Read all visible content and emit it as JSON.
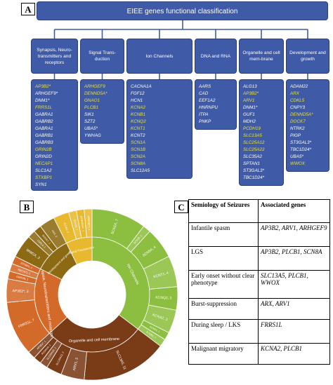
{
  "panel_a": {
    "label": "A",
    "title": "EIEE genes functional classification",
    "categories": [
      {
        "label": "Synapsis, Neuro-transmitters and receptors",
        "genes": [
          {
            "name": "AP3B2*",
            "hl": true
          },
          {
            "name": "ARHGEF9*",
            "hl": false
          },
          {
            "name": "DNM1*",
            "hl": false
          },
          {
            "name": "FRRS1L",
            "hl": true
          },
          {
            "name": "GABRA1",
            "hl": false
          },
          {
            "name": "GABRB2",
            "hl": false
          },
          {
            "name": "GABRA1",
            "hl": false
          },
          {
            "name": "GABRB1",
            "hl": false
          },
          {
            "name": "GABRB3",
            "hl": false
          },
          {
            "name": "GRIN2B",
            "hl": true
          },
          {
            "name": "GRIN2D",
            "hl": false
          },
          {
            "name": "NECAP1",
            "hl": true
          },
          {
            "name": "SLC1A2",
            "hl": false
          },
          {
            "name": "STXBP1",
            "hl": true
          },
          {
            "name": "SYN1",
            "hl": false
          }
        ]
      },
      {
        "label": "Signal Trans-duction",
        "genes": [
          {
            "name": "ARHGEF9",
            "hl": true
          },
          {
            "name": "DENND5A*",
            "hl": true
          },
          {
            "name": "GNAO1",
            "hl": true
          },
          {
            "name": "PLCB1",
            "hl": true
          },
          {
            "name": "SIK1",
            "hl": false
          },
          {
            "name": "SZT2",
            "hl": false
          },
          {
            "name": "UBA5*",
            "hl": false
          },
          {
            "name": "YWHAG",
            "hl": false
          }
        ]
      },
      {
        "label": "Ion Channels",
        "genes": [
          {
            "name": "CACNA1A",
            "hl": false
          },
          {
            "name": "FGF12",
            "hl": false
          },
          {
            "name": "HCN1",
            "hl": false
          },
          {
            "name": "KCNA2",
            "hl": true
          },
          {
            "name": "KCNB1",
            "hl": true
          },
          {
            "name": "KCNQ2",
            "hl": true
          },
          {
            "name": "KCNT1",
            "hl": true
          },
          {
            "name": "KCNT2",
            "hl": false
          },
          {
            "name": "SCN1A",
            "hl": true
          },
          {
            "name": "SCN1B",
            "hl": true
          },
          {
            "name": "SCN2A",
            "hl": true
          },
          {
            "name": "SCN8A",
            "hl": true
          },
          {
            "name": "SLC12A5",
            "hl": false
          }
        ]
      },
      {
        "label": "DNA and RNA",
        "genes": [
          {
            "name": "AARS",
            "hl": false
          },
          {
            "name": "CAD",
            "hl": false
          },
          {
            "name": "EEF1A2",
            "hl": false
          },
          {
            "name": "HNRNPU",
            "hl": false
          },
          {
            "name": "ITPA",
            "hl": false
          },
          {
            "name": "PNKP",
            "hl": false
          }
        ]
      },
      {
        "label": "Organelle and cell mem-brane",
        "genes": [
          {
            "name": "ALG13",
            "hl": false
          },
          {
            "name": "AP3B2*",
            "hl": true
          },
          {
            "name": "ARV1",
            "hl": true
          },
          {
            "name": "DNM1*",
            "hl": false
          },
          {
            "name": "GUF1",
            "hl": false
          },
          {
            "name": "MDH2",
            "hl": false
          },
          {
            "name": "PCDH19",
            "hl": true
          },
          {
            "name": "SLC13A5",
            "hl": true
          },
          {
            "name": "SLC25A12",
            "hl": true
          },
          {
            "name": "SLC25A22",
            "hl": true
          },
          {
            "name": "SLC35A2",
            "hl": false
          },
          {
            "name": "SPTAN1",
            "hl": false
          },
          {
            "name": "ST3GAL3*",
            "hl": false
          },
          {
            "name": "TBC1D24*",
            "hl": false
          }
        ]
      },
      {
        "label": "Development and growth",
        "genes": [
          {
            "name": "ADAM22",
            "hl": false
          },
          {
            "name": "ARX",
            "hl": true
          },
          {
            "name": "CDKL5",
            "hl": true
          },
          {
            "name": "CNPY3",
            "hl": false
          },
          {
            "name": "DENND5A*",
            "hl": true
          },
          {
            "name": "DOCK7",
            "hl": true
          },
          {
            "name": "NTRK2",
            "hl": false
          },
          {
            "name": "PIGP",
            "hl": false
          },
          {
            "name": "ST3GAL3*",
            "hl": false
          },
          {
            "name": "TBC1D24*",
            "hl": false
          },
          {
            "name": "UBA5*",
            "hl": false
          },
          {
            "name": "WWOX",
            "hl": true
          }
        ]
      }
    ]
  },
  "panel_b": {
    "label": "B",
    "groups": [
      {
        "name": "Ion Channels",
        "color": "#8cbf3f",
        "members": [
          {
            "label": "SCN1A, 7",
            "value": 7
          },
          {
            "label": "SCN1B, 1",
            "value": 1
          },
          {
            "label": "SCN8A, 4",
            "value": 4
          },
          {
            "label": "KCNT1, 4",
            "value": 4
          },
          {
            "label": "KCNQ2, 3",
            "value": 3
          },
          {
            "label": "KCNA2, 3",
            "value": 3
          },
          {
            "label": "SCN2A, 1",
            "value": 1
          },
          {
            "label": "KCNB1, 1",
            "value": 1
          }
        ]
      },
      {
        "name": "Organelle and cell membrane",
        "color": "#7a3b17",
        "members": [
          {
            "label": "SLC13A5, 11",
            "value": 11
          },
          {
            "label": "ARV1, 3",
            "value": 3
          },
          {
            "label": "SLC25A12, 2",
            "value": 2
          },
          {
            "label": "SLC25A22, 1",
            "value": 1
          },
          {
            "label": "PCDH19, 1",
            "value": 1
          },
          {
            "label": "AP3B2*, 1",
            "value": 1
          }
        ]
      },
      {
        "name": "Synapsis, Neurotransmitters and receptors",
        "color": "#d46a2a",
        "members": [
          {
            "label": "FRRS1L, 7",
            "value": 7
          },
          {
            "label": "AP3B2*, 3",
            "value": 3
          },
          {
            "label": "GRIN2B, 1",
            "value": 1
          },
          {
            "label": "NECAP1, 1",
            "value": 1
          },
          {
            "label": "STXBP1, 1",
            "value": 1
          }
        ]
      },
      {
        "name": "Development and growth",
        "color": "#8c6a14",
        "members": [
          {
            "label": "WWOX, 3",
            "value": 3
          },
          {
            "label": "CDKL5, 1",
            "value": 1
          },
          {
            "label": "DOCK7, 1",
            "value": 1
          },
          {
            "label": "ARX, 2",
            "value": 2
          }
        ]
      },
      {
        "name": "Signal Transduction",
        "color": "#e8b82e",
        "members": [
          {
            "label": "PLCB1, 2",
            "value": 2
          },
          {
            "label": "GNAO1, 1",
            "value": 1
          },
          {
            "label": "DENND5A*, 1",
            "value": 1
          },
          {
            "label": "ARHGEF9, 1",
            "value": 1
          }
        ]
      }
    ]
  },
  "panel_c": {
    "label": "C",
    "headers": [
      "Semiology of Seizures",
      "Associated genes"
    ],
    "rows": [
      {
        "semiology": "Infantile spasm",
        "genes": "AP3B2, ARV1, ARHGEF9"
      },
      {
        "semiology": "LGS",
        "genes": "AP3B2, PLCB1, SCN8A"
      },
      {
        "semiology": "Early onset without clear phenotype",
        "genes": "SLC13A5, PLCB1, WWOX"
      },
      {
        "semiology": "Burst-suppression",
        "genes": "ARX, ARV1"
      },
      {
        "semiology": "During sleep / LKS",
        "genes": "FRRS1L"
      },
      {
        "semiology": "Malignant migratory",
        "genes": "KCNA2, PLCB1"
      }
    ]
  }
}
